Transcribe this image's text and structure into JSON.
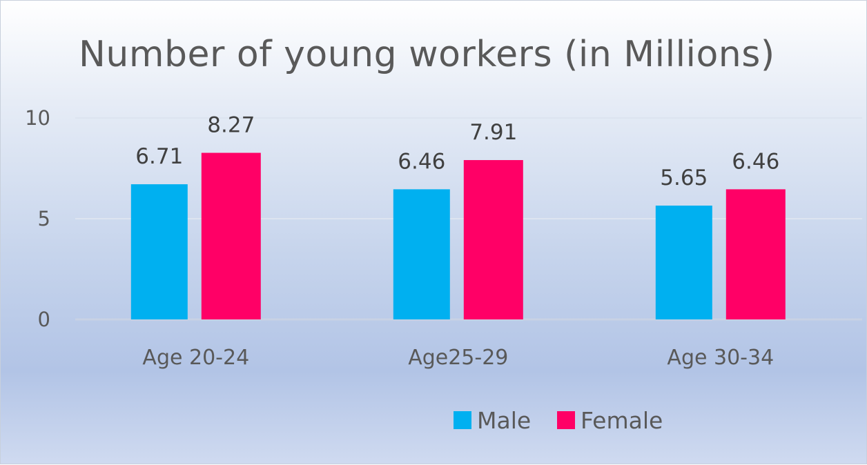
{
  "chart_data": {
    "type": "bar",
    "title": "Number of young workers (in Millions)",
    "xlabel": "",
    "ylabel": "",
    "categories": [
      "Age 20-24",
      "Age25-29",
      "Age 30-34"
    ],
    "series": [
      {
        "name": "Male",
        "values": [
          6.71,
          6.46,
          5.65
        ],
        "color": "#00B0F0"
      },
      {
        "name": "Female",
        "values": [
          8.27,
          7.91,
          6.46
        ],
        "color": "#FF0066"
      }
    ],
    "ylim": [
      0,
      10
    ],
    "yticks": [
      0,
      5,
      10
    ],
    "grid": true,
    "legend": "bottom"
  }
}
